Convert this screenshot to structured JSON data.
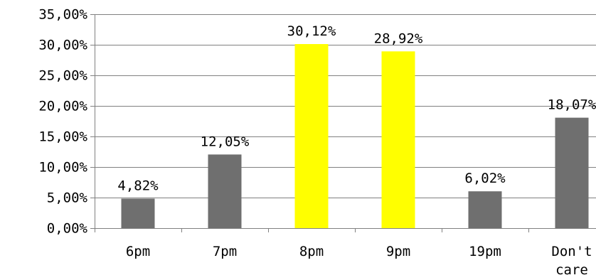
{
  "chart_data": {
    "type": "bar",
    "categories": [
      "6pm",
      "7pm",
      "8pm",
      "9pm",
      "19pm",
      "Don't care"
    ],
    "values": [
      4.82,
      12.05,
      30.12,
      28.92,
      6.02,
      18.07
    ],
    "data_labels": [
      "4,82%",
      "12,05%",
      "30,12%",
      "28,92%",
      "6,02%",
      "18,07%"
    ],
    "bar_colors": [
      "#6f6f6f",
      "#6f6f6f",
      "#ffff00",
      "#ffff00",
      "#6f6f6f",
      "#6f6f6f"
    ],
    "ylim": [
      0,
      35
    ],
    "y_ticks": [
      0,
      5,
      10,
      15,
      20,
      25,
      30,
      35
    ],
    "y_tick_labels": [
      "0,00%",
      "5,00%",
      "10,00%",
      "15,00%",
      "20,00%",
      "25,00%",
      "30,00%",
      "35,00%"
    ],
    "grid": true,
    "legend": "none",
    "title": "",
    "xlabel": "",
    "ylabel": ""
  },
  "colors": {
    "gridline": "#808080",
    "axis": "#808080",
    "highlight_bar": "#ffff00",
    "default_bar": "#6f6f6f"
  }
}
